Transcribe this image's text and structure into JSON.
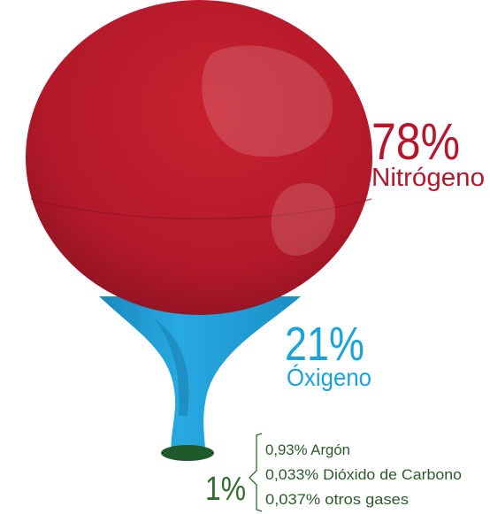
{
  "nitrogen": {
    "percent": "78%",
    "name": "Nitrógeno"
  },
  "oxygen": {
    "percent": "21%",
    "name": "Óxigeno"
  },
  "other": {
    "percent": "1%",
    "items": [
      "0,93% Argón",
      "0,033% Dióxido de Carbono",
      "0,037% otros gases"
    ]
  }
}
